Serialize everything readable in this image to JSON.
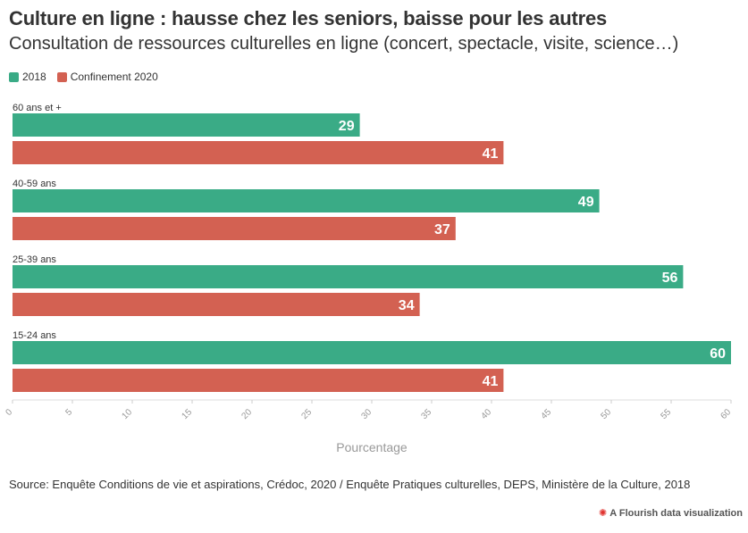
{
  "header": {
    "title": "Culture en ligne : hausse chez les seniors, baisse pour les autres",
    "subtitle": "Consultation de ressources culturelles en ligne (concert, spectacle, visite, science…)"
  },
  "legend": [
    {
      "label": "2018",
      "color": "#3aab86"
    },
    {
      "label": "Confinement 2020",
      "color": "#d36152"
    }
  ],
  "chart_data": {
    "type": "bar",
    "orientation": "horizontal",
    "categories": [
      "60 ans et +",
      "40-59 ans",
      "25-39 ans",
      "15-24 ans"
    ],
    "series": [
      {
        "name": "2018",
        "values": [
          29,
          49,
          56,
          60
        ],
        "color": "#3aab86"
      },
      {
        "name": "Confinement 2020",
        "values": [
          41,
          37,
          34,
          41
        ],
        "color": "#d36152"
      }
    ],
    "xlabel": "Pourcentage",
    "xlim": [
      0,
      60
    ],
    "xticks": [
      0,
      5,
      10,
      15,
      20,
      25,
      30,
      35,
      40,
      45,
      50,
      55,
      60
    ],
    "grid": false,
    "legend_position": "top-left"
  },
  "footer": {
    "source": "Source: Enquête Conditions de vie et aspirations, Crédoc, 2020 / Enquête Pratiques culturelles, DEPS, Ministère de la Culture, 2018",
    "credit": "A Flourish data visualization",
    "credit_icon": "flourish-icon"
  }
}
